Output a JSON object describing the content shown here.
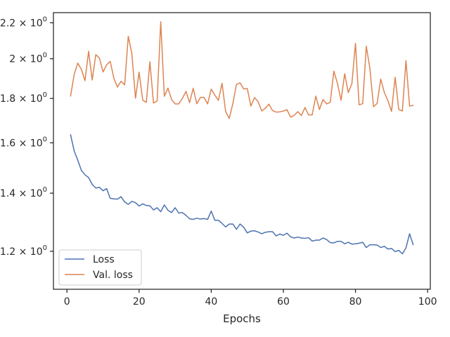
{
  "chart_data": {
    "type": "line",
    "title": "",
    "xlabel": "Epochs",
    "ylabel": "",
    "xlim": [
      -3.75,
      100.75
    ],
    "ylim": [
      1.085,
      2.26
    ],
    "yscale": "log",
    "grid": false,
    "legend_position": "lower-left",
    "x_ticks": [
      0,
      20,
      40,
      60,
      80,
      100
    ],
    "x_tick_labels": [
      "0",
      "20",
      "40",
      "60",
      "80",
      "100"
    ],
    "y_ticks": [
      1.2,
      1.4,
      1.6,
      1.8,
      2.0,
      2.2
    ],
    "y_tick_labels": [
      {
        "mantissa": "1.2",
        "base": "× 10",
        "exp": "0"
      },
      {
        "mantissa": "1.4",
        "base": "× 10",
        "exp": "0"
      },
      {
        "mantissa": "1.6",
        "base": "× 10",
        "exp": "0"
      },
      {
        "mantissa": "1.8",
        "base": "× 10",
        "exp": "0"
      },
      {
        "mantissa": "2",
        "base": "× 10",
        "exp": "0"
      },
      {
        "mantissa": "2.2",
        "base": "× 10",
        "exp": "0"
      }
    ],
    "x": [
      1,
      2,
      3,
      4,
      5,
      6,
      7,
      8,
      9,
      10,
      11,
      12,
      13,
      14,
      15,
      16,
      17,
      18,
      19,
      20,
      21,
      22,
      23,
      24,
      25,
      26,
      27,
      28,
      29,
      30,
      31,
      32,
      33,
      34,
      35,
      36,
      37,
      38,
      39,
      40,
      41,
      42,
      43,
      44,
      45,
      46,
      47,
      48,
      49,
      50,
      51,
      52,
      53,
      54,
      55,
      56,
      57,
      58,
      59,
      60,
      61,
      62,
      63,
      64,
      65,
      66,
      67,
      68,
      69,
      70,
      71,
      72,
      73,
      74,
      75,
      76,
      77,
      78,
      79,
      80,
      81,
      82,
      83,
      84,
      85,
      86,
      87,
      88,
      89,
      90,
      91,
      92,
      93,
      94,
      95,
      96
    ],
    "series": [
      {
        "name": "Loss",
        "color": "#4c72b0",
        "values": [
          1.635,
          1.566,
          1.528,
          1.487,
          1.47,
          1.459,
          1.433,
          1.419,
          1.422,
          1.409,
          1.417,
          1.381,
          1.379,
          1.378,
          1.387,
          1.368,
          1.359,
          1.37,
          1.365,
          1.353,
          1.361,
          1.355,
          1.354,
          1.339,
          1.347,
          1.333,
          1.357,
          1.338,
          1.33,
          1.347,
          1.328,
          1.33,
          1.32,
          1.308,
          1.306,
          1.31,
          1.307,
          1.309,
          1.306,
          1.335,
          1.303,
          1.303,
          1.292,
          1.28,
          1.29,
          1.29,
          1.272,
          1.29,
          1.279,
          1.26,
          1.266,
          1.267,
          1.263,
          1.257,
          1.262,
          1.264,
          1.264,
          1.25,
          1.256,
          1.252,
          1.259,
          1.247,
          1.243,
          1.246,
          1.243,
          1.242,
          1.244,
          1.233,
          1.236,
          1.236,
          1.243,
          1.238,
          1.228,
          1.227,
          1.232,
          1.232,
          1.224,
          1.229,
          1.223,
          1.224,
          1.226,
          1.229,
          1.212,
          1.221,
          1.221,
          1.22,
          1.212,
          1.216,
          1.207,
          1.209,
          1.199,
          1.203,
          1.192,
          1.211,
          1.257,
          1.221
        ]
      },
      {
        "name": "Val. loss",
        "color": "#dd8452",
        "values": [
          1.811,
          1.918,
          1.977,
          1.944,
          1.887,
          2.04,
          1.89,
          2.022,
          2.003,
          1.931,
          1.968,
          1.986,
          1.899,
          1.855,
          1.884,
          1.866,
          2.123,
          2.026,
          1.801,
          1.93,
          1.792,
          1.781,
          1.984,
          1.778,
          1.788,
          2.206,
          1.81,
          1.85,
          1.795,
          1.774,
          1.774,
          1.8,
          1.834,
          1.78,
          1.849,
          1.775,
          1.805,
          1.805,
          1.774,
          1.845,
          1.816,
          1.791,
          1.874,
          1.738,
          1.707,
          1.776,
          1.868,
          1.876,
          1.846,
          1.848,
          1.764,
          1.804,
          1.785,
          1.741,
          1.754,
          1.773,
          1.743,
          1.736,
          1.737,
          1.741,
          1.747,
          1.713,
          1.721,
          1.738,
          1.72,
          1.757,
          1.723,
          1.723,
          1.811,
          1.748,
          1.795,
          1.774,
          1.782,
          1.935,
          1.874,
          1.791,
          1.922,
          1.828,
          1.872,
          2.083,
          1.77,
          1.775,
          2.067,
          1.948,
          1.761,
          1.776,
          1.895,
          1.829,
          1.789,
          1.739,
          1.904,
          1.748,
          1.741,
          1.99,
          1.764,
          1.767
        ]
      }
    ]
  }
}
